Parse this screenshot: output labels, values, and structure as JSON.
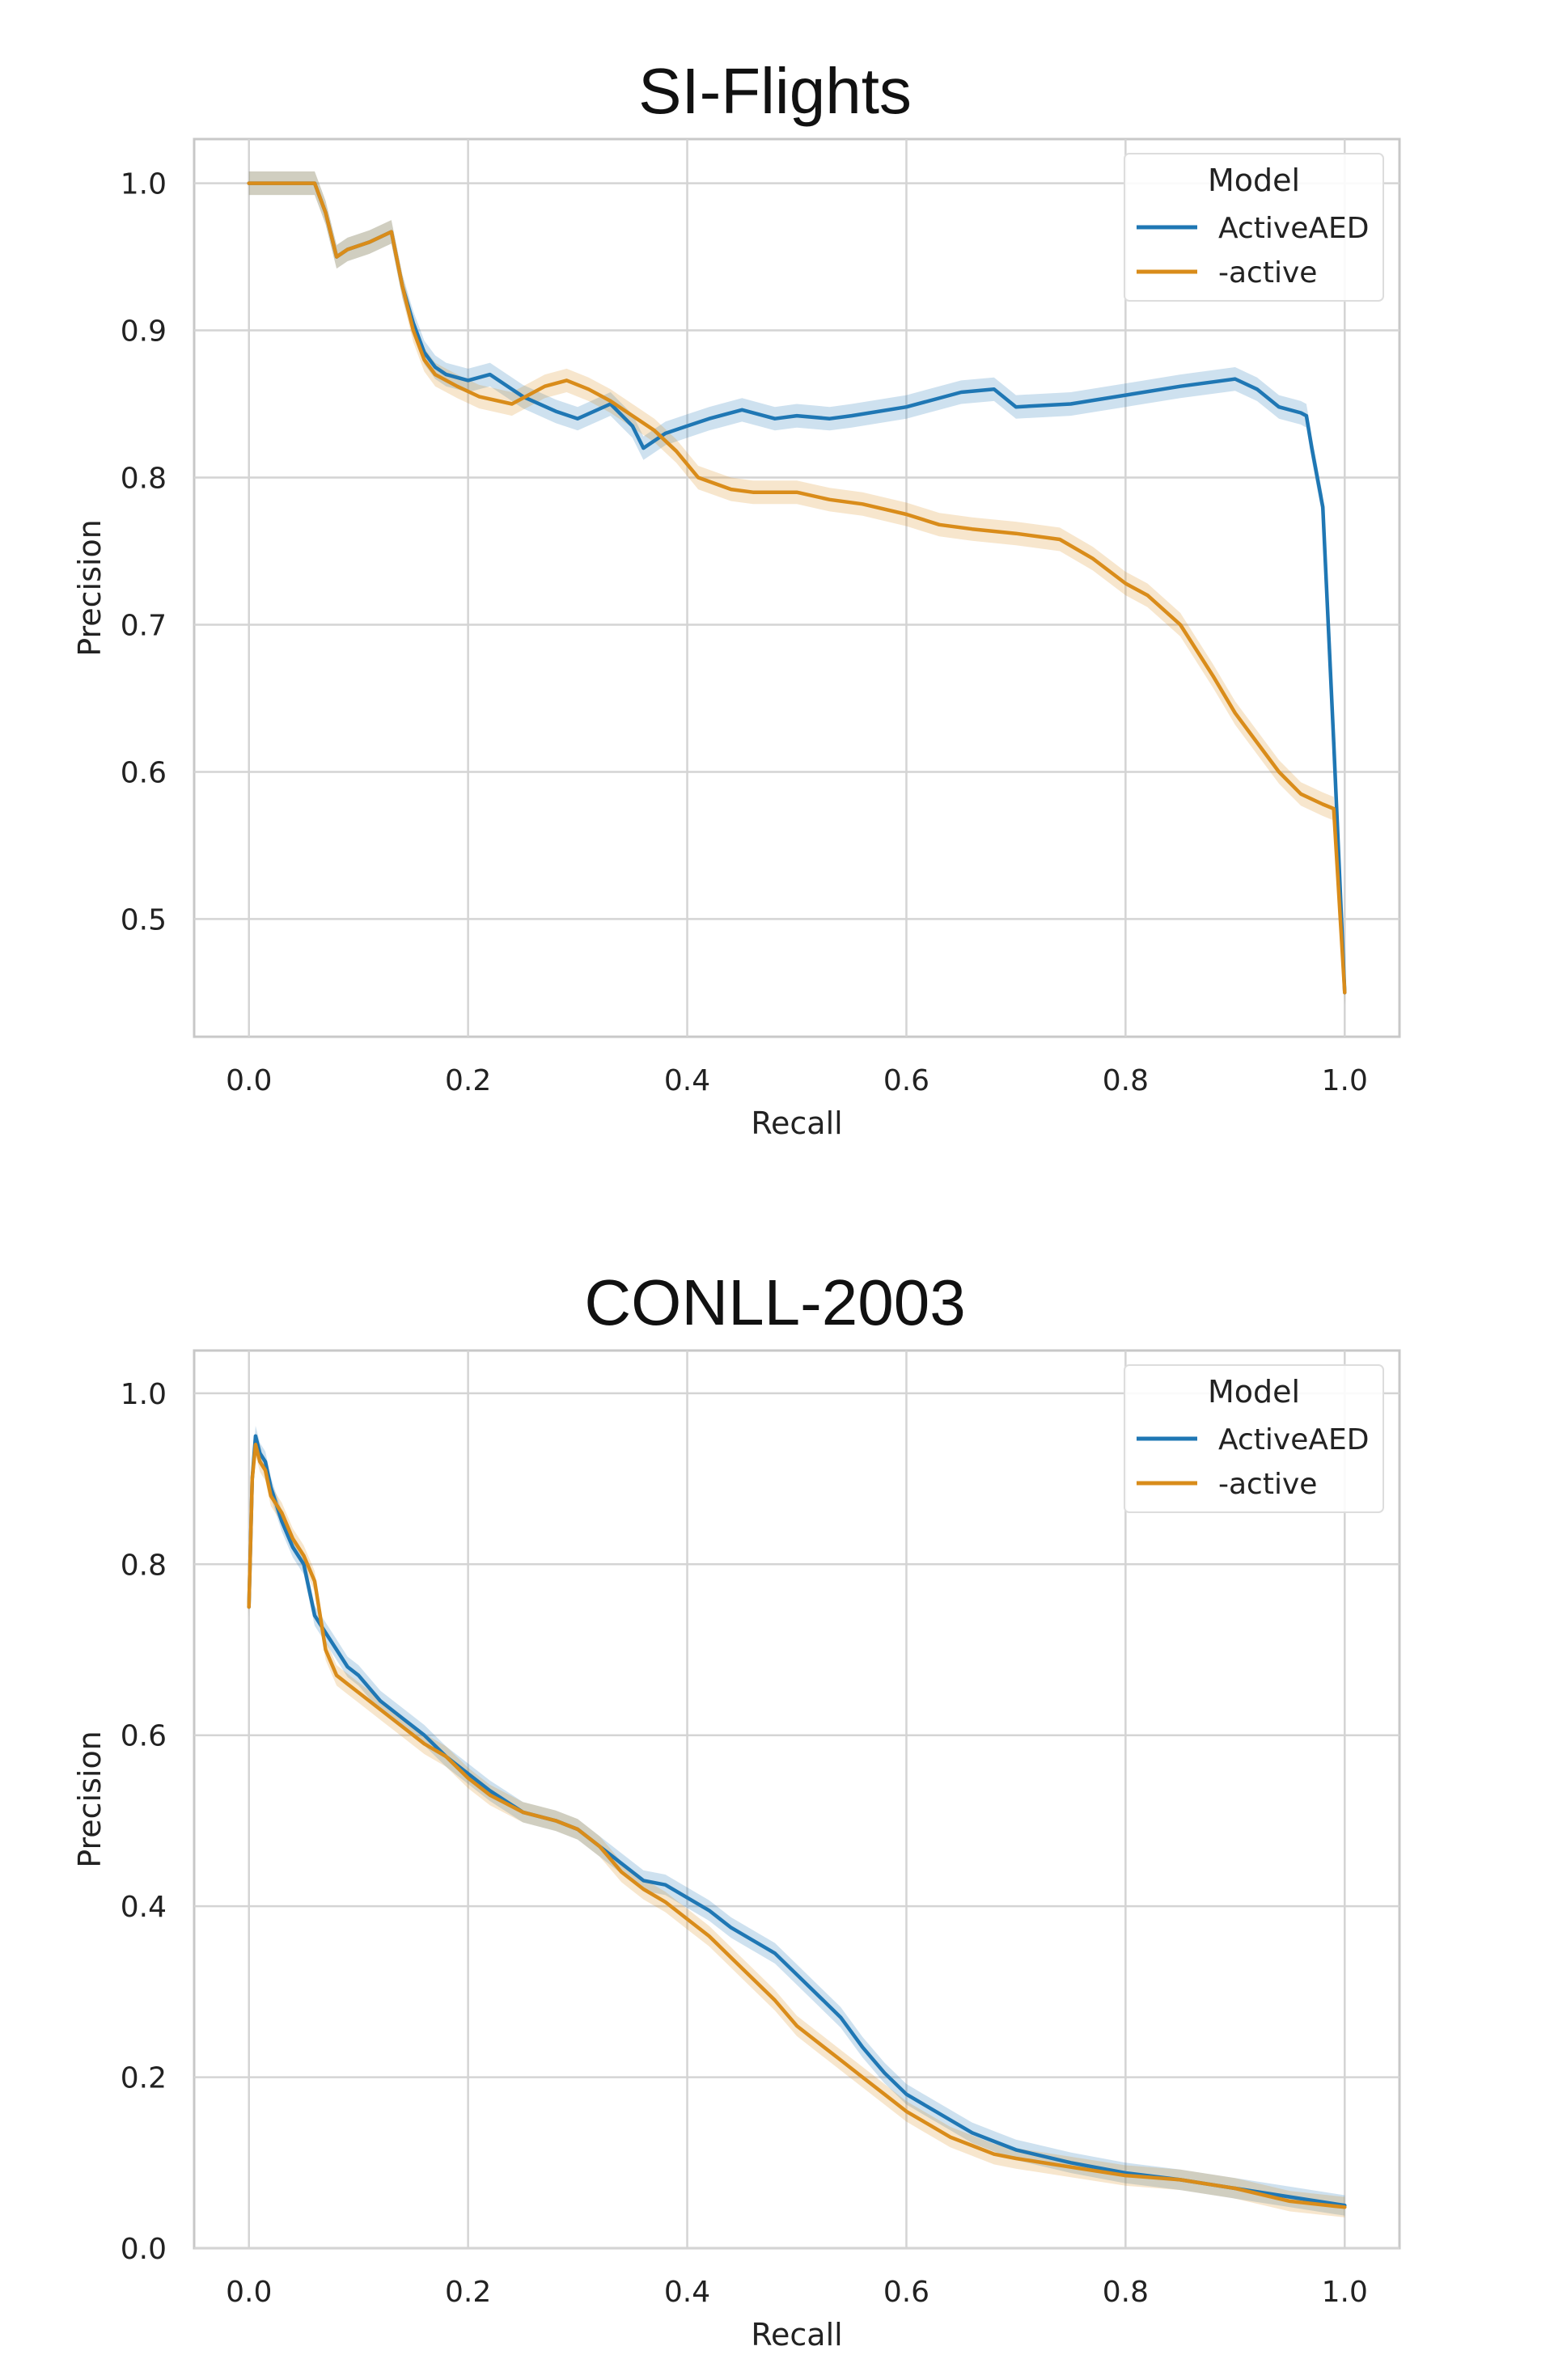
{
  "colors": {
    "activeaed": "#1f77b4",
    "active": "#d98c1a",
    "grid": "#d4d4d4",
    "frame": "#c8c8c8",
    "text": "#222222"
  },
  "chart_data": [
    {
      "type": "line",
      "title": "SI-Flights",
      "xlabel": "Recall",
      "ylabel": "Precision",
      "xlim": [
        -0.05,
        1.05
      ],
      "ylim": [
        0.42,
        1.03
      ],
      "xticks": [
        0.0,
        0.2,
        0.4,
        0.6,
        0.8,
        1.0
      ],
      "xtick_labels": [
        "0.0",
        "0.2",
        "0.4",
        "0.6",
        "0.8",
        "1.0"
      ],
      "yticks": [
        0.5,
        0.6,
        0.7,
        0.8,
        0.9,
        1.0
      ],
      "ytick_labels": [
        "0.5",
        "0.6",
        "0.7",
        "0.8",
        "0.9",
        "1.0"
      ],
      "grid": true,
      "legend": {
        "title": "Model",
        "position": "top-right"
      },
      "series": [
        {
          "name": "ActiveAED",
          "color_key": "activeaed",
          "band": 0.008,
          "x": [
            0.0,
            0.06,
            0.07,
            0.08,
            0.09,
            0.11,
            0.13,
            0.14,
            0.15,
            0.16,
            0.17,
            0.18,
            0.2,
            0.22,
            0.25,
            0.28,
            0.3,
            0.33,
            0.35,
            0.36,
            0.38,
            0.4,
            0.42,
            0.45,
            0.48,
            0.5,
            0.53,
            0.55,
            0.6,
            0.65,
            0.68,
            0.7,
            0.75,
            0.8,
            0.85,
            0.9,
            0.92,
            0.94,
            0.96,
            0.965,
            0.97,
            0.98,
            0.99,
            1.0
          ],
          "values": [
            1.0,
            1.0,
            0.98,
            0.95,
            0.955,
            0.96,
            0.967,
            0.93,
            0.905,
            0.885,
            0.875,
            0.87,
            0.866,
            0.87,
            0.855,
            0.845,
            0.84,
            0.85,
            0.835,
            0.82,
            0.83,
            0.835,
            0.84,
            0.846,
            0.84,
            0.842,
            0.84,
            0.842,
            0.848,
            0.858,
            0.86,
            0.848,
            0.85,
            0.856,
            0.862,
            0.867,
            0.86,
            0.848,
            0.844,
            0.842,
            0.82,
            0.78,
            0.62,
            0.45
          ]
        },
        {
          "name": "-active",
          "color_key": "active",
          "band": 0.008,
          "x": [
            0.0,
            0.06,
            0.07,
            0.08,
            0.09,
            0.11,
            0.13,
            0.14,
            0.15,
            0.16,
            0.17,
            0.19,
            0.21,
            0.24,
            0.27,
            0.29,
            0.31,
            0.33,
            0.35,
            0.37,
            0.39,
            0.41,
            0.44,
            0.46,
            0.5,
            0.53,
            0.56,
            0.6,
            0.63,
            0.66,
            0.7,
            0.74,
            0.77,
            0.8,
            0.82,
            0.85,
            0.88,
            0.9,
            0.92,
            0.94,
            0.96,
            0.98,
            0.99,
            1.0
          ],
          "values": [
            1.0,
            1.0,
            0.98,
            0.95,
            0.955,
            0.96,
            0.967,
            0.93,
            0.9,
            0.88,
            0.87,
            0.862,
            0.855,
            0.85,
            0.862,
            0.866,
            0.86,
            0.852,
            0.842,
            0.832,
            0.818,
            0.8,
            0.792,
            0.79,
            0.79,
            0.785,
            0.782,
            0.775,
            0.768,
            0.765,
            0.762,
            0.758,
            0.745,
            0.728,
            0.72,
            0.7,
            0.665,
            0.64,
            0.62,
            0.6,
            0.585,
            0.578,
            0.575,
            0.45
          ]
        }
      ]
    },
    {
      "type": "line",
      "title": "CONLL-2003",
      "xlabel": "Recall",
      "ylabel": "Precision",
      "xlim": [
        -0.05,
        1.05
      ],
      "ylim": [
        0.0,
        1.05
      ],
      "xticks": [
        0.0,
        0.2,
        0.4,
        0.6,
        0.8,
        1.0
      ],
      "xtick_labels": [
        "0.0",
        "0.2",
        "0.4",
        "0.6",
        "0.8",
        "1.0"
      ],
      "yticks": [
        0.0,
        0.2,
        0.4,
        0.6,
        0.8,
        1.0
      ],
      "ytick_labels": [
        "0.0",
        "0.2",
        "0.4",
        "0.6",
        "0.8",
        "1.0"
      ],
      "grid": true,
      "legend": {
        "title": "Model",
        "position": "top-right"
      },
      "series": [
        {
          "name": "ActiveAED",
          "color_key": "activeaed",
          "band": 0.012,
          "x": [
            0.0,
            0.003,
            0.006,
            0.01,
            0.015,
            0.02,
            0.03,
            0.04,
            0.05,
            0.06,
            0.07,
            0.08,
            0.09,
            0.1,
            0.12,
            0.14,
            0.16,
            0.18,
            0.2,
            0.22,
            0.25,
            0.28,
            0.3,
            0.32,
            0.34,
            0.36,
            0.38,
            0.4,
            0.42,
            0.44,
            0.46,
            0.48,
            0.5,
            0.52,
            0.54,
            0.56,
            0.58,
            0.6,
            0.62,
            0.64,
            0.66,
            0.68,
            0.7,
            0.75,
            0.8,
            0.85,
            0.9,
            0.95,
            1.0
          ],
          "values": [
            0.75,
            0.9,
            0.95,
            0.93,
            0.92,
            0.89,
            0.85,
            0.82,
            0.8,
            0.74,
            0.72,
            0.7,
            0.68,
            0.67,
            0.64,
            0.62,
            0.6,
            0.575,
            0.555,
            0.535,
            0.51,
            0.5,
            0.49,
            0.47,
            0.45,
            0.43,
            0.425,
            0.41,
            0.395,
            0.375,
            0.36,
            0.345,
            0.32,
            0.295,
            0.27,
            0.235,
            0.205,
            0.18,
            0.165,
            0.15,
            0.135,
            0.125,
            0.115,
            0.1,
            0.088,
            0.08,
            0.07,
            0.06,
            0.05
          ]
        },
        {
          "name": "-active",
          "color_key": "active",
          "band": 0.012,
          "x": [
            0.0,
            0.003,
            0.006,
            0.01,
            0.015,
            0.02,
            0.03,
            0.04,
            0.05,
            0.06,
            0.07,
            0.08,
            0.09,
            0.1,
            0.12,
            0.14,
            0.16,
            0.18,
            0.2,
            0.22,
            0.25,
            0.28,
            0.3,
            0.32,
            0.34,
            0.36,
            0.38,
            0.4,
            0.42,
            0.44,
            0.46,
            0.48,
            0.5,
            0.52,
            0.54,
            0.56,
            0.58,
            0.6,
            0.62,
            0.64,
            0.66,
            0.68,
            0.7,
            0.75,
            0.8,
            0.85,
            0.9,
            0.95,
            1.0
          ],
          "values": [
            0.75,
            0.9,
            0.94,
            0.92,
            0.91,
            0.88,
            0.86,
            0.83,
            0.81,
            0.78,
            0.7,
            0.67,
            0.66,
            0.65,
            0.63,
            0.61,
            0.59,
            0.575,
            0.55,
            0.53,
            0.51,
            0.5,
            0.49,
            0.47,
            0.44,
            0.42,
            0.405,
            0.385,
            0.365,
            0.34,
            0.315,
            0.29,
            0.26,
            0.24,
            0.22,
            0.2,
            0.18,
            0.16,
            0.145,
            0.13,
            0.12,
            0.11,
            0.105,
            0.095,
            0.085,
            0.08,
            0.07,
            0.055,
            0.048
          ]
        }
      ]
    }
  ]
}
